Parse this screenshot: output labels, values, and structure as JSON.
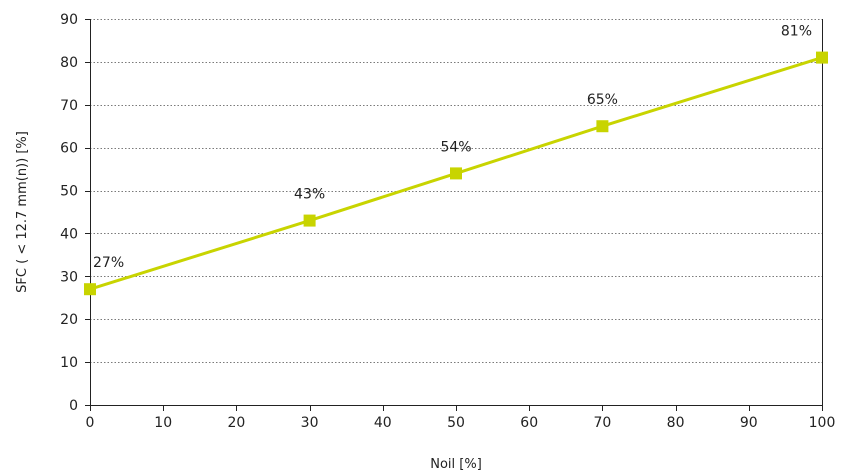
{
  "chart_data": {
    "type": "line",
    "title": "",
    "xlabel": "Noil [%]",
    "ylabel": "SFC ( < 12.7 mm(n)) [%]",
    "xlim": [
      0,
      100
    ],
    "ylim": [
      0,
      90
    ],
    "x_ticks": [
      "0",
      "10",
      "20",
      "30",
      "40",
      "50",
      "60",
      "70",
      "80",
      "90",
      "100"
    ],
    "y_ticks": [
      "0",
      "10",
      "20",
      "30",
      "40",
      "50",
      "60",
      "70",
      "80",
      "90"
    ],
    "grid": "horizontal-dotted",
    "legend": "none",
    "series": [
      {
        "color": "#c8d400",
        "marker": "square",
        "points": [
          {
            "x": 0,
            "y": 27,
            "label": "27%"
          },
          {
            "x": 30,
            "y": 43,
            "label": "43%"
          },
          {
            "x": 50,
            "y": 54,
            "label": "54%"
          },
          {
            "x": 70,
            "y": 65,
            "label": "65%"
          },
          {
            "x": 100,
            "y": 81,
            "label": "81%"
          }
        ]
      }
    ]
  }
}
